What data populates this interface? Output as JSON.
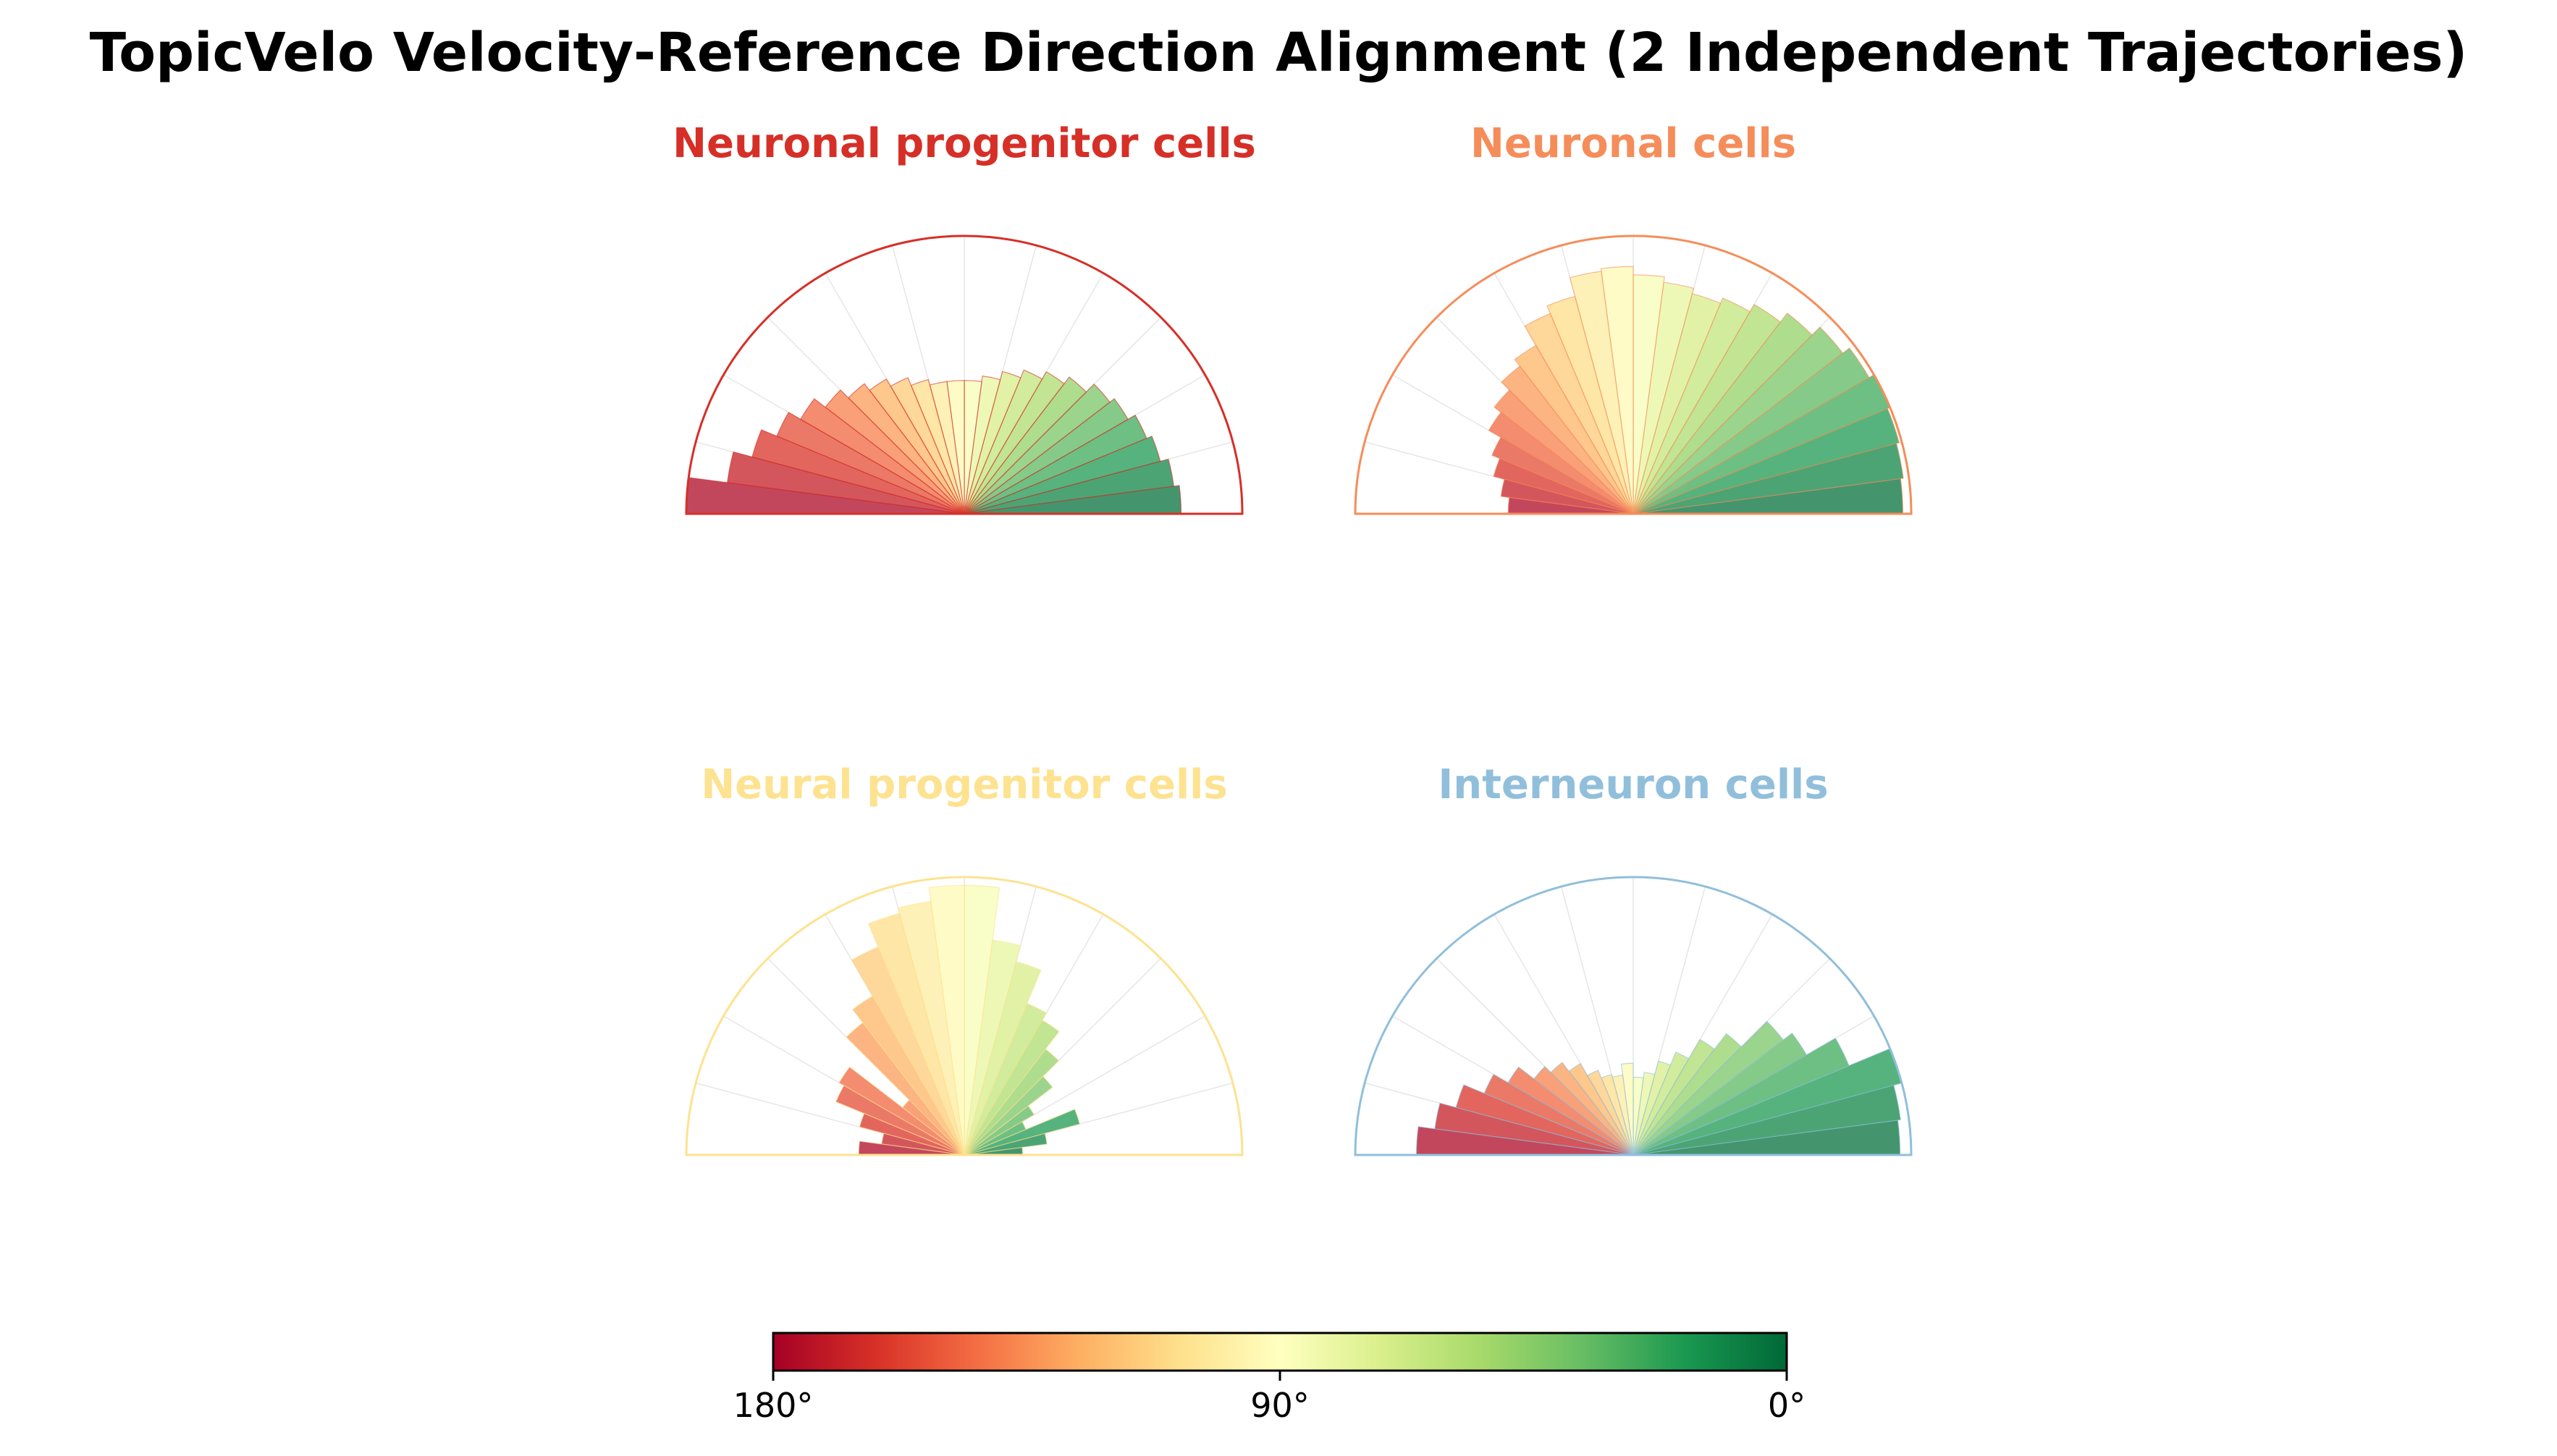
{
  "title": "TopicVelo Velocity-Reference Direction Alignment (2 Independent Trajectories)",
  "colorbar": {
    "colormap": "RdYlGn",
    "tick_labels": [
      "180°",
      "90°",
      "0°"
    ],
    "tick_values": [
      180,
      90,
      0
    ]
  },
  "chart_data": [
    {
      "type": "polar-histogram",
      "title": "Neuronal progenitor cells",
      "title_color": "#d62f27",
      "angle_unit": "degrees",
      "angle_range": [
        0,
        180
      ],
      "bin_width": 7.5,
      "bin_centers": [
        3.75,
        11.25,
        18.75,
        26.25,
        33.75,
        41.25,
        48.75,
        56.25,
        63.75,
        71.25,
        78.75,
        86.25,
        93.75,
        101.25,
        108.75,
        116.25,
        123.75,
        131.25,
        138.75,
        146.25,
        153.75,
        161.25,
        168.75,
        176.25
      ],
      "values": [
        0.78,
        0.76,
        0.73,
        0.71,
        0.68,
        0.66,
        0.62,
        0.59,
        0.56,
        0.53,
        0.5,
        0.48,
        0.48,
        0.48,
        0.5,
        0.53,
        0.56,
        0.59,
        0.63,
        0.68,
        0.73,
        0.79,
        0.86,
        1.0
      ],
      "rmax": 1.0,
      "grid": true
    },
    {
      "type": "polar-histogram",
      "title": "Neuronal cells",
      "title_color": "#f58d5a",
      "angle_unit": "degrees",
      "angle_range": [
        0,
        180
      ],
      "bin_width": 7.5,
      "bin_centers": [
        3.75,
        11.25,
        18.75,
        26.25,
        33.75,
        41.25,
        48.75,
        56.25,
        63.75,
        71.25,
        78.75,
        86.25,
        93.75,
        101.25,
        108.75,
        116.25,
        123.75,
        131.25,
        138.75,
        146.25,
        153.75,
        161.25,
        168.75,
        176.25
      ],
      "values": [
        0.97,
        0.98,
        0.99,
        1.0,
        0.98,
        0.95,
        0.91,
        0.87,
        0.84,
        0.82,
        0.84,
        0.86,
        0.89,
        0.88,
        0.81,
        0.78,
        0.7,
        0.67,
        0.63,
        0.6,
        0.55,
        0.52,
        0.48,
        0.45
      ],
      "rmax": 1.0,
      "grid": true
    },
    {
      "type": "polar-histogram",
      "title": "Neural progenitor cells",
      "title_color": "#fde290",
      "angle_unit": "degrees",
      "angle_range": [
        0,
        180
      ],
      "bin_width": 7.5,
      "bin_centers": [
        3.75,
        11.25,
        18.75,
        26.25,
        33.75,
        41.25,
        48.75,
        56.25,
        63.75,
        71.25,
        78.75,
        86.25,
        93.75,
        101.25,
        108.75,
        116.25,
        123.75,
        131.25,
        138.75,
        146.25,
        153.75,
        161.25,
        168.75,
        176.25
      ],
      "values": [
        0.21,
        0.3,
        0.43,
        0.24,
        0.29,
        0.4,
        0.48,
        0.56,
        0.59,
        0.72,
        0.78,
        0.97,
        0.97,
        0.92,
        0.9,
        0.81,
        0.66,
        0.6,
        0.28,
        0.52,
        0.5,
        0.39,
        0.3,
        0.38
      ],
      "rmax": 1.0,
      "grid": true
    },
    {
      "type": "polar-histogram",
      "title": "Interneuron cells",
      "title_color": "#91bfdb",
      "angle_unit": "degrees",
      "angle_range": [
        0,
        180
      ],
      "bin_width": 7.5,
      "bin_centers": [
        3.75,
        11.25,
        18.75,
        26.25,
        33.75,
        41.25,
        48.75,
        56.25,
        63.75,
        71.25,
        78.75,
        86.25,
        93.75,
        101.25,
        108.75,
        116.25,
        123.75,
        131.25,
        138.75,
        146.25,
        153.75,
        161.25,
        168.75,
        176.25
      ],
      "values": [
        0.96,
        0.97,
        1.0,
        0.84,
        0.72,
        0.68,
        0.55,
        0.48,
        0.4,
        0.35,
        0.3,
        0.28,
        0.33,
        0.29,
        0.3,
        0.33,
        0.38,
        0.42,
        0.45,
        0.52,
        0.58,
        0.66,
        0.72,
        0.78
      ],
      "rmax": 1.0,
      "grid": true
    }
  ]
}
